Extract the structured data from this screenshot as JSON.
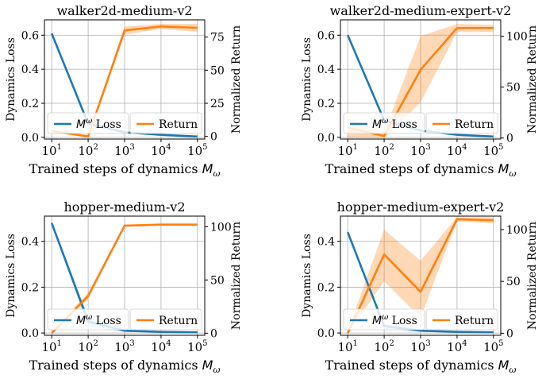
{
  "chart_data": [
    {
      "type": "line",
      "title": "walker2d-medium-v2",
      "xlabel_text": "Trained steps of dynamics ",
      "xlabel_symbol": "M",
      "xlabel_sub": "ω",
      "ylabel_left": "Dynamics Loss",
      "ylabel_right": "Normalized Return",
      "x": [
        10,
        100,
        1000,
        10000,
        100000
      ],
      "x_scale": "log",
      "x_ticks": [
        {
          "base": "10",
          "exp": "1"
        },
        {
          "base": "10",
          "exp": "2"
        },
        {
          "base": "10",
          "exp": "3"
        },
        {
          "base": "10",
          "exp": "4"
        },
        {
          "base": "10",
          "exp": "5"
        }
      ],
      "ylim_left": [
        -0.01,
        0.69
      ],
      "yticks_left": [
        "0.0",
        "0.2",
        "0.4",
        "0.6"
      ],
      "ylim_right": [
        -2,
        88
      ],
      "yticks_right": [
        "0",
        "25",
        "50",
        "75"
      ],
      "grid": true,
      "legend_position": "lower-center",
      "series": [
        {
          "name_symbol": "M",
          "name_sup": "ω",
          "name_text": " Loss",
          "axis": "left",
          "color": "#1f77b4",
          "values": [
            0.61,
            0.08,
            0.03,
            0.015,
            0.005
          ],
          "band_low": [
            0.6,
            0.07,
            0.025,
            0.01,
            0.003
          ],
          "band_high": [
            0.62,
            0.09,
            0.035,
            0.02,
            0.008
          ]
        },
        {
          "name": "Return",
          "axis": "right",
          "color": "#ff7f0e",
          "values": [
            4,
            0,
            80,
            83,
            82
          ],
          "band_low": [
            3,
            0,
            77,
            81,
            79
          ],
          "band_high": [
            5,
            1,
            83,
            85,
            85
          ]
        }
      ]
    },
    {
      "type": "line",
      "title": "walker2d-medium-expert-v2",
      "xlabel_text": "Trained steps of dynamics ",
      "xlabel_symbol": "M",
      "xlabel_sub": "ω",
      "ylabel_left": "Dynamics Loss",
      "ylabel_right": "Normalized Return",
      "x": [
        10,
        100,
        1000,
        10000,
        100000
      ],
      "x_scale": "log",
      "x_ticks": [
        {
          "base": "10",
          "exp": "1"
        },
        {
          "base": "10",
          "exp": "2"
        },
        {
          "base": "10",
          "exp": "3"
        },
        {
          "base": "10",
          "exp": "4"
        },
        {
          "base": "10",
          "exp": "5"
        }
      ],
      "ylim_left": [
        -0.01,
        0.69
      ],
      "yticks_left": [
        "0.0",
        "0.2",
        "0.4",
        "0.6"
      ],
      "ylim_right": [
        -1,
        116
      ],
      "yticks_right": [
        "0",
        "50",
        "100"
      ],
      "grid": true,
      "legend_position": "lower-center",
      "series": [
        {
          "name_symbol": "M",
          "name_sup": "ω",
          "name_text": " Loss",
          "axis": "left",
          "color": "#1f77b4",
          "values": [
            0.6,
            0.1,
            0.04,
            0.015,
            0.005
          ],
          "band_low": [
            0.59,
            0.09,
            0.035,
            0.01,
            0.003
          ],
          "band_high": [
            0.61,
            0.11,
            0.045,
            0.02,
            0.008
          ]
        },
        {
          "name": "Return",
          "axis": "right",
          "color": "#ff7f0e",
          "values": [
            10,
            2,
            67,
            108,
            108
          ],
          "band_low": [
            0,
            0,
            35,
            104,
            104
          ],
          "band_high": [
            20,
            6,
            100,
            112,
            111
          ]
        }
      ]
    },
    {
      "type": "line",
      "title": "hopper-medium-v2",
      "xlabel_text": "Trained steps of dynamics ",
      "xlabel_symbol": "M",
      "xlabel_sub": "ω",
      "ylabel_left": "Dynamics Loss",
      "ylabel_right": "Normalized Return",
      "x": [
        10,
        100,
        1000,
        10000,
        100000
      ],
      "x_scale": "log",
      "x_ticks": [
        {
          "base": "10",
          "exp": "1"
        },
        {
          "base": "10",
          "exp": "2"
        },
        {
          "base": "10",
          "exp": "3"
        },
        {
          "base": "10",
          "exp": "4"
        },
        {
          "base": "10",
          "exp": "5"
        }
      ],
      "ylim_left": [
        -0.01,
        0.51
      ],
      "yticks_left": [
        "0.0",
        "0.2",
        "0.4"
      ],
      "ylim_right": [
        -2,
        110
      ],
      "yticks_right": [
        "0",
        "50",
        "100"
      ],
      "grid": true,
      "legend_position": "lower-center",
      "series": [
        {
          "name_symbol": "M",
          "name_sup": "ω",
          "name_text": " Loss",
          "axis": "left",
          "color": "#1f77b4",
          "values": [
            0.48,
            0.05,
            0.01,
            0.005,
            0.003
          ],
          "band_low": [
            0.47,
            0.03,
            0.005,
            0.002,
            0.001
          ],
          "band_high": [
            0.49,
            0.07,
            0.015,
            0.008,
            0.005
          ]
        },
        {
          "name": "Return",
          "axis": "right",
          "color": "#ff7f0e",
          "values": [
            0,
            35,
            101,
            102,
            102
          ],
          "band_low": [
            0,
            32,
            100,
            101,
            101
          ],
          "band_high": [
            1,
            38,
            102,
            103,
            103
          ]
        }
      ]
    },
    {
      "type": "line",
      "title": "hopper-medium-expert-v2",
      "xlabel_text": "Trained steps of dynamics ",
      "xlabel_symbol": "M",
      "xlabel_sub": "ω",
      "ylabel_left": "Dynamics Loss",
      "ylabel_right": "Normalized Return",
      "x": [
        10,
        100,
        1000,
        10000,
        100000
      ],
      "x_scale": "log",
      "x_ticks": [
        {
          "base": "10",
          "exp": "1"
        },
        {
          "base": "10",
          "exp": "2"
        },
        {
          "base": "10",
          "exp": "3"
        },
        {
          "base": "10",
          "exp": "4"
        },
        {
          "base": "10",
          "exp": "5"
        }
      ],
      "ylim_left": [
        -0.01,
        0.51
      ],
      "yticks_left": [
        "0.0",
        "0.2",
        "0.4"
      ],
      "ylim_right": [
        -2,
        113
      ],
      "yticks_right": [
        "0",
        "50",
        "100"
      ],
      "grid": true,
      "legend_position": "lower-center",
      "series": [
        {
          "name_symbol": "M",
          "name_sup": "ω",
          "name_text": " Loss",
          "axis": "left",
          "color": "#1f77b4",
          "values": [
            0.44,
            0.03,
            0.01,
            0.005,
            0.003
          ],
          "band_low": [
            0.43,
            0.02,
            0.005,
            0.002,
            0.001
          ],
          "band_high": [
            0.45,
            0.04,
            0.015,
            0.008,
            0.005
          ]
        },
        {
          "name": "Return",
          "axis": "right",
          "color": "#ff7f0e",
          "values": [
            0,
            76,
            40,
            110,
            109
          ],
          "band_low": [
            0,
            50,
            15,
            108,
            106
          ],
          "band_high": [
            2,
            100,
            70,
            112,
            112
          ]
        }
      ]
    }
  ]
}
